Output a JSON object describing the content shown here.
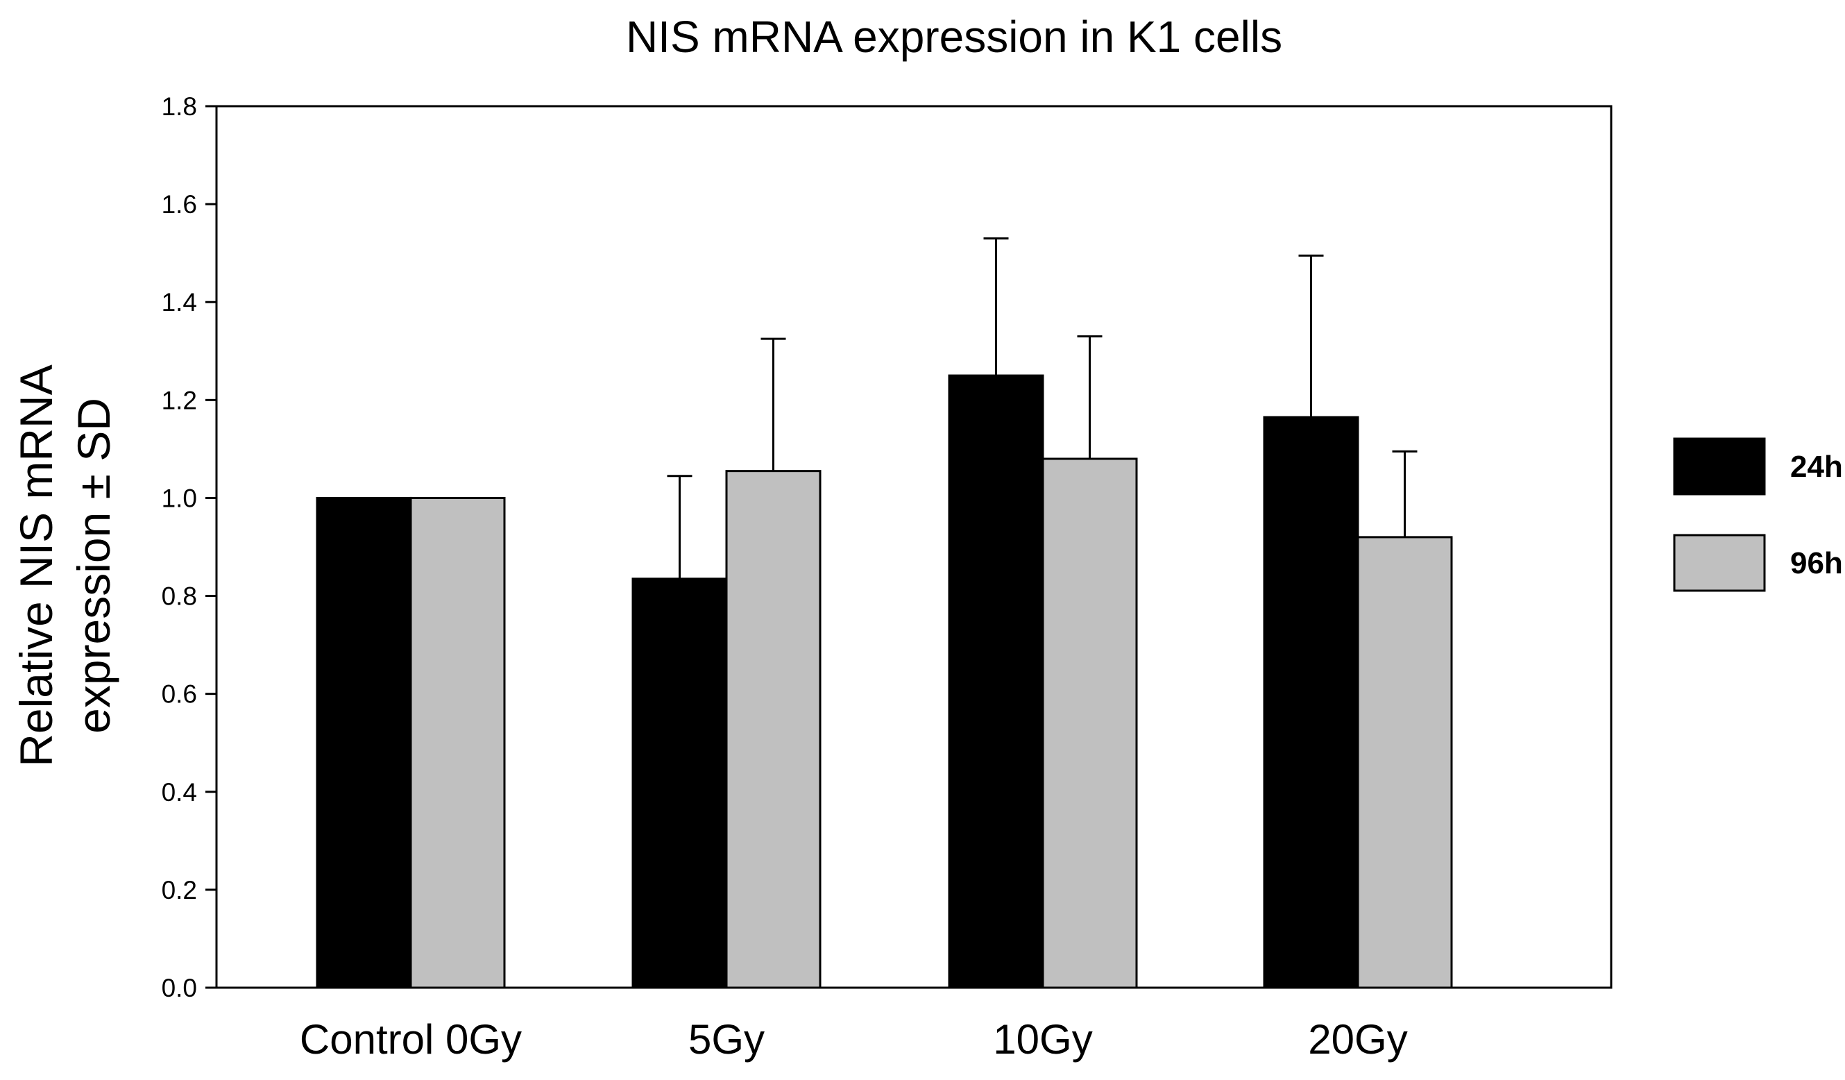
{
  "chart_data": {
    "type": "bar",
    "title": "NIS mRNA expression in K1 cells",
    "ylabel_lines": [
      "Relative NIS mRNA",
      "expression ± SD"
    ],
    "xlabel": "",
    "categories": [
      "Control 0Gy",
      "5Gy",
      "10Gy",
      "20Gy"
    ],
    "ylim": [
      0,
      1.8
    ],
    "yticks": [
      0.0,
      0.2,
      0.4,
      0.6,
      0.8,
      1.0,
      1.2,
      1.4,
      1.6,
      1.8
    ],
    "ytick_labels": [
      "0.0",
      "0.2",
      "0.4",
      "0.6",
      "0.8",
      "1.0",
      "1.2",
      "1.4",
      "1.6",
      "1.8"
    ],
    "grid": false,
    "legend_position": "right",
    "series": [
      {
        "name": "24h",
        "color": "#000000",
        "values": [
          1.0,
          0.835,
          1.25,
          1.165
        ],
        "errors": [
          0.0,
          0.21,
          0.28,
          0.33
        ]
      },
      {
        "name": "96h",
        "color": "#c0c0c0",
        "values": [
          1.0,
          1.055,
          1.08,
          0.92
        ],
        "errors": [
          0.0,
          0.27,
          0.25,
          0.175
        ]
      }
    ]
  }
}
